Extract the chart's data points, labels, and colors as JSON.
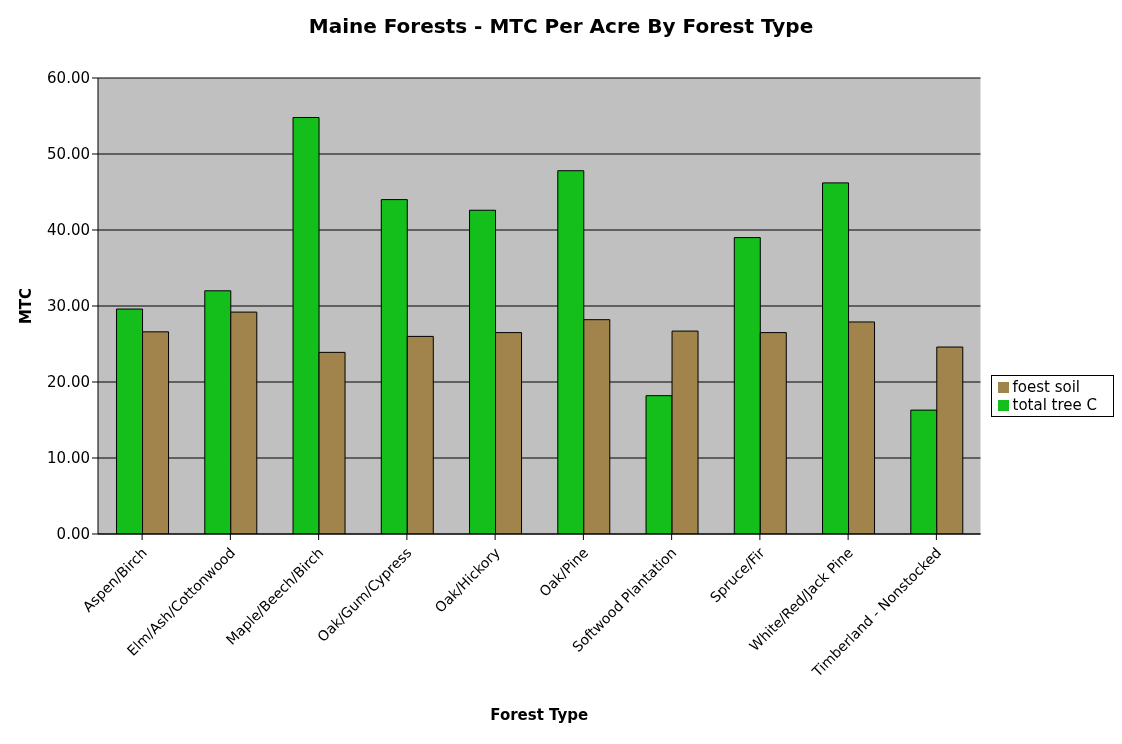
{
  "chart_data": {
    "type": "bar",
    "title": "Maine Forests - MTC Per Acre By Forest Type",
    "xlabel": "Forest Type",
    "ylabel": "MTC",
    "categories": [
      "Aspen/Birch",
      "Elm/Ash/Cottonwood",
      "Maple/Beech/Birch",
      "Oak/Gum/Cypress",
      "Oak/Hickory",
      "Oak/Pine",
      "Softwood Plantation",
      "Spruce/Fir",
      "White/Red/Jack Pine",
      "Timberland - Nonstocked"
    ],
    "series": [
      {
        "name": "total tree C",
        "color": "#14bf1c",
        "values": [
          29.6,
          32.0,
          54.8,
          44.0,
          42.6,
          47.8,
          18.2,
          39.0,
          46.2,
          16.3
        ]
      },
      {
        "name": "foest soil",
        "color": "#a0844c",
        "values": [
          26.6,
          29.2,
          23.9,
          26.0,
          26.5,
          28.2,
          26.7,
          26.5,
          27.9,
          24.6
        ]
      }
    ],
    "ylim": [
      0,
      60
    ],
    "yticks": [
      {
        "value": 0,
        "label": "0.00"
      },
      {
        "value": 10,
        "label": "10.00"
      },
      {
        "value": 20,
        "label": "20.00"
      },
      {
        "value": 30,
        "label": "30.00"
      },
      {
        "value": 40,
        "label": "40.00"
      },
      {
        "value": 50,
        "label": "50.00"
      },
      {
        "value": 60,
        "label": "60.00"
      }
    ],
    "grid": "y",
    "legend": "right"
  }
}
